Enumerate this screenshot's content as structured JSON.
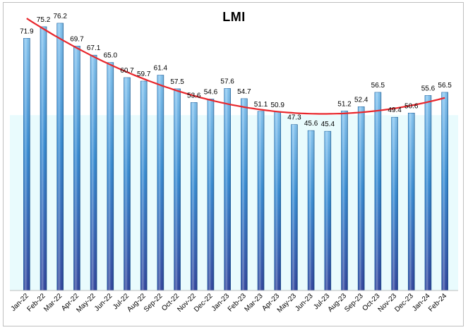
{
  "chart_data": {
    "type": "bar",
    "title": "LMI",
    "xlabel": "",
    "ylabel": "",
    "ylim": [
      0,
      80
    ],
    "grid": false,
    "legend": "none",
    "trendline": "polynomial",
    "categories": [
      "Jan-22",
      "Feb-22",
      "Mar-22",
      "Apr-22",
      "May-22",
      "Jun-22",
      "Jul-22",
      "Aug-22",
      "Sep-22",
      "Oct-22",
      "Nov-22",
      "Dec-22",
      "Jan-23",
      "Feb-23",
      "Mar-23",
      "Apr-23",
      "May-23",
      "Jun-23",
      "Jul-23",
      "Aug-23",
      "Sep-23",
      "Oct-23",
      "Nov-23",
      "Dec-23",
      "Jan-24",
      "Feb-24"
    ],
    "values": [
      71.9,
      75.2,
      76.2,
      69.7,
      67.1,
      65.0,
      60.7,
      59.7,
      61.4,
      57.5,
      53.6,
      54.6,
      57.6,
      54.7,
      51.1,
      50.9,
      47.3,
      45.6,
      45.4,
      51.2,
      52.4,
      56.5,
      49.4,
      50.6,
      55.6,
      56.5
    ],
    "value_labels": [
      "71.9",
      "75.2",
      "76.2",
      "69.7",
      "67.1",
      "65.0",
      "60.7",
      "59.7",
      "61.4",
      "57.5",
      "53.6",
      "54.6",
      "57.6",
      "54.7",
      "51.1",
      "50.9",
      "47.3",
      "45.6",
      "45.4",
      "51.2",
      "52.4",
      "56.5",
      "49.4",
      "50.6",
      "55.6",
      "56.5"
    ],
    "reference_line": 50,
    "colors": {
      "bar_top": "#7fc1ee",
      "bar_mid": "#2f86d0",
      "bar_bottom": "#2a3f9a",
      "bar_border": "#1b5f9e",
      "trend": "#e8262b",
      "band_above_50": "#ffffff",
      "band_below_50": "#e9fbfd",
      "axis": "#bfbfbf"
    }
  }
}
